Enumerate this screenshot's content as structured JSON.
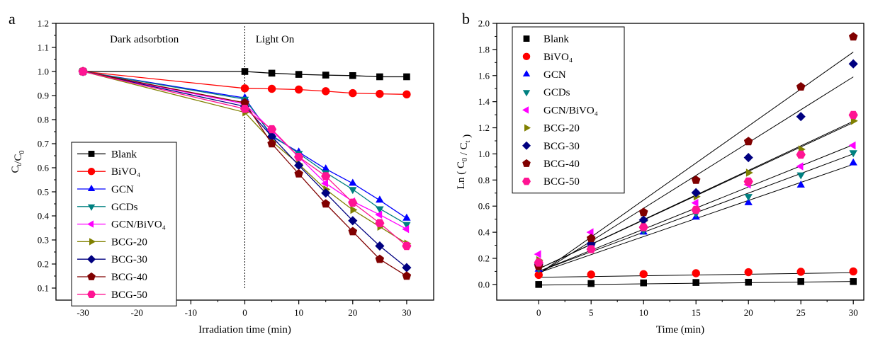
{
  "chart_data": [
    {
      "panel": "a",
      "type": "line",
      "title": "",
      "xlabel": "Irradiation time (min)",
      "ylabel": {
        "base": "C",
        "sub": "t",
        "sep": "/",
        "base2": "C",
        "sub2": "0"
      },
      "xlim": [
        -35,
        35
      ],
      "ylim": [
        0.05,
        1.2
      ],
      "xticks": [
        -30,
        -20,
        -10,
        0,
        10,
        20,
        30
      ],
      "yticks": [
        0.1,
        0.2,
        0.3,
        0.4,
        0.5,
        0.6,
        0.7,
        0.8,
        0.9,
        1.0,
        1.1,
        1.2
      ],
      "grid": false,
      "legend_position": "bottom-left",
      "annotations": [
        {
          "text": "Dark adsorbtion",
          "x": -25,
          "y": 1.12
        },
        {
          "text": "Light On",
          "x": 2,
          "y": 1.12
        }
      ],
      "vline_x": 0,
      "series": [
        {
          "name": "Blank",
          "color": "#000000",
          "marker": "square",
          "x": [
            -30,
            0,
            5,
            10,
            15,
            20,
            25,
            30
          ],
          "y": [
            1.0,
            1.0,
            0.993,
            0.988,
            0.985,
            0.983,
            0.978,
            0.978
          ]
        },
        {
          "name": "BiVO₄",
          "color": "#ff0000",
          "marker": "circle",
          "x": [
            -30,
            0,
            5,
            10,
            15,
            20,
            25,
            30
          ],
          "y": [
            1.0,
            0.93,
            0.928,
            0.925,
            0.918,
            0.91,
            0.907,
            0.905
          ]
        },
        {
          "name": "GCN",
          "color": "#0000ff",
          "marker": "triangle-up",
          "x": [
            -30,
            0,
            5,
            10,
            15,
            20,
            25,
            30
          ],
          "y": [
            1.0,
            0.89,
            0.73,
            0.665,
            0.595,
            0.535,
            0.465,
            0.39
          ]
        },
        {
          "name": "GCDs",
          "color": "#008080",
          "marker": "triangle-down",
          "x": [
            -30,
            0,
            5,
            10,
            15,
            20,
            25,
            30
          ],
          "y": [
            1.0,
            0.885,
            0.735,
            0.66,
            0.58,
            0.51,
            0.43,
            0.365
          ]
        },
        {
          "name": "GCN/BiVO₄",
          "color": "#ff00ff",
          "marker": "triangle-left",
          "x": [
            -30,
            0,
            5,
            10,
            15,
            20,
            25,
            30
          ],
          "y": [
            1.0,
            0.865,
            0.755,
            0.645,
            0.535,
            0.46,
            0.405,
            0.345
          ]
        },
        {
          "name": "BCG-20",
          "color": "#808000",
          "marker": "triangle-right",
          "x": [
            -30,
            0,
            5,
            10,
            15,
            20,
            25,
            30
          ],
          "y": [
            1.0,
            0.83,
            0.71,
            0.615,
            0.51,
            0.425,
            0.355,
            0.285
          ]
        },
        {
          "name": "BCG-30",
          "color": "#000080",
          "marker": "diamond",
          "x": [
            -30,
            0,
            5,
            10,
            15,
            20,
            25,
            30
          ],
          "y": [
            1.0,
            0.855,
            0.73,
            0.61,
            0.495,
            0.38,
            0.275,
            0.185
          ]
        },
        {
          "name": "BCG-40",
          "color": "#800000",
          "marker": "pentagon",
          "x": [
            -30,
            0,
            5,
            10,
            15,
            20,
            25,
            30
          ],
          "y": [
            1.0,
            0.87,
            0.7,
            0.575,
            0.45,
            0.335,
            0.22,
            0.15
          ]
        },
        {
          "name": "BCG-50",
          "color": "#ff1493",
          "marker": "hexagon",
          "x": [
            -30,
            0,
            5,
            10,
            15,
            20,
            25,
            30
          ],
          "y": [
            1.0,
            0.845,
            0.76,
            0.645,
            0.565,
            0.455,
            0.37,
            0.275
          ]
        }
      ]
    },
    {
      "panel": "b",
      "type": "scatter",
      "title": "",
      "xlabel": "Time (min)",
      "ylabel": {
        "prefix": "Ln ( ",
        "base": "C",
        "sub": "0",
        "sep": " / ",
        "base2": "C",
        "sub2": "t",
        "suffix": " )"
      },
      "xlim": [
        -4,
        31
      ],
      "ylim": [
        -0.12,
        2.0
      ],
      "xticks": [
        0,
        5,
        10,
        15,
        20,
        25,
        30
      ],
      "yticks": [
        0.0,
        0.2,
        0.4,
        0.6,
        0.8,
        1.0,
        1.2,
        1.4,
        1.6,
        1.8,
        2.0
      ],
      "grid": false,
      "legend_position": "top-left",
      "series": [
        {
          "name": "Blank",
          "color": "#000000",
          "marker": "square",
          "x": [
            0,
            5,
            10,
            15,
            20,
            25,
            30
          ],
          "y": [
            0.0,
            0.007,
            0.012,
            0.015,
            0.017,
            0.022,
            0.022
          ],
          "fit": [
            -0.005,
            0.023
          ]
        },
        {
          "name": "BiVO₄",
          "color": "#ff0000",
          "marker": "circle",
          "x": [
            0,
            5,
            10,
            15,
            20,
            25,
            30
          ],
          "y": [
            0.073,
            0.076,
            0.079,
            0.086,
            0.094,
            0.097,
            0.1
          ],
          "fit": [
            0.055,
            0.09
          ]
        },
        {
          "name": "GCN",
          "color": "#0000ff",
          "marker": "triangle-up",
          "x": [
            0,
            5,
            10,
            15,
            20,
            25,
            30
          ],
          "y": [
            0.116,
            0.31,
            0.4,
            0.515,
            0.625,
            0.76,
            0.93
          ],
          "fit": [
            0.09,
            0.92
          ]
        },
        {
          "name": "GCDs",
          "color": "#008080",
          "marker": "triangle-down",
          "x": [
            0,
            5,
            10,
            15,
            20,
            25,
            30
          ],
          "y": [
            0.122,
            0.305,
            0.415,
            0.545,
            0.675,
            0.84,
            1.01
          ],
          "fit": [
            0.1,
            1.0
          ]
        },
        {
          "name": "GCN/BiVO₄",
          "color": "#ff00ff",
          "marker": "triangle-left",
          "x": [
            0,
            5,
            10,
            15,
            20,
            25,
            30
          ],
          "y": [
            0.232,
            0.4,
            0.44,
            0.625,
            0.765,
            0.905,
            1.065
          ],
          "fit": [
            0.1,
            1.07
          ]
        },
        {
          "name": "BCG-20",
          "color": "#808000",
          "marker": "triangle-right",
          "x": [
            0,
            5,
            10,
            15,
            20,
            25,
            30
          ],
          "y": [
            0.186,
            0.342,
            0.487,
            0.673,
            0.856,
            1.035,
            1.253
          ],
          "fit": [
            0.12,
            1.24
          ]
        },
        {
          "name": "BCG-30",
          "color": "#000080",
          "marker": "diamond",
          "x": [
            0,
            5,
            10,
            15,
            20,
            25,
            30
          ],
          "y": [
            0.156,
            0.311,
            0.494,
            0.703,
            0.972,
            1.286,
            1.69
          ],
          "fit": [
            0.08,
            1.59
          ]
        },
        {
          "name": "BCG-40",
          "color": "#800000",
          "marker": "pentagon",
          "x": [
            0,
            5,
            10,
            15,
            20,
            25,
            30
          ],
          "y": [
            0.139,
            0.353,
            0.553,
            0.799,
            1.095,
            1.514,
            1.897
          ],
          "fit": [
            0.08,
            1.78
          ]
        },
        {
          "name": "BCG-50",
          "color": "#ff1493",
          "marker": "hexagon",
          "x": [
            0,
            5,
            10,
            15,
            20,
            25,
            30
          ],
          "y": [
            0.168,
            0.27,
            0.438,
            0.571,
            0.788,
            0.994,
            1.298
          ],
          "fit": [
            0.12,
            1.25
          ]
        }
      ]
    }
  ]
}
